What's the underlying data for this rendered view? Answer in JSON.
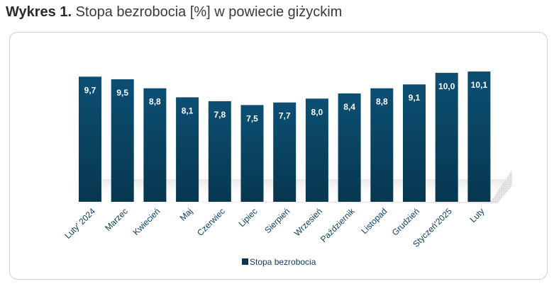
{
  "heading": {
    "lead": "Wykres 1.",
    "text": "Stopa bezrobocia [%] w powiecie giżyckim"
  },
  "chart_data": {
    "type": "bar",
    "categories": [
      "Luty' 2024",
      "Marzec",
      "Kwiecień",
      "Maj",
      "Czerwiec",
      "Lipiec",
      "Sierpień",
      "Wrzesień",
      "Październik",
      "Listopad",
      "Grudzień",
      "Styczeń'2025",
      "Luty"
    ],
    "series": [
      {
        "name": "Stopa bezrobocia",
        "values": [
          9.7,
          9.5,
          8.8,
          8.1,
          7.8,
          7.5,
          7.7,
          8.0,
          8.4,
          8.8,
          9.1,
          10.0,
          10.1
        ]
      }
    ],
    "data_labels": [
      "9,7",
      "9,5",
      "8,8",
      "8,1",
      "7,8",
      "7,5",
      "7,7",
      "8,0",
      "8,4",
      "8,8",
      "9,1",
      "10,0",
      "10,1"
    ],
    "ylim": [
      0,
      10.1
    ],
    "grid": false,
    "legend_position": "bottom",
    "colors": {
      "bar_top": "#0c4f73",
      "bar_bottom": "#073750",
      "label": "#ffffff"
    }
  }
}
